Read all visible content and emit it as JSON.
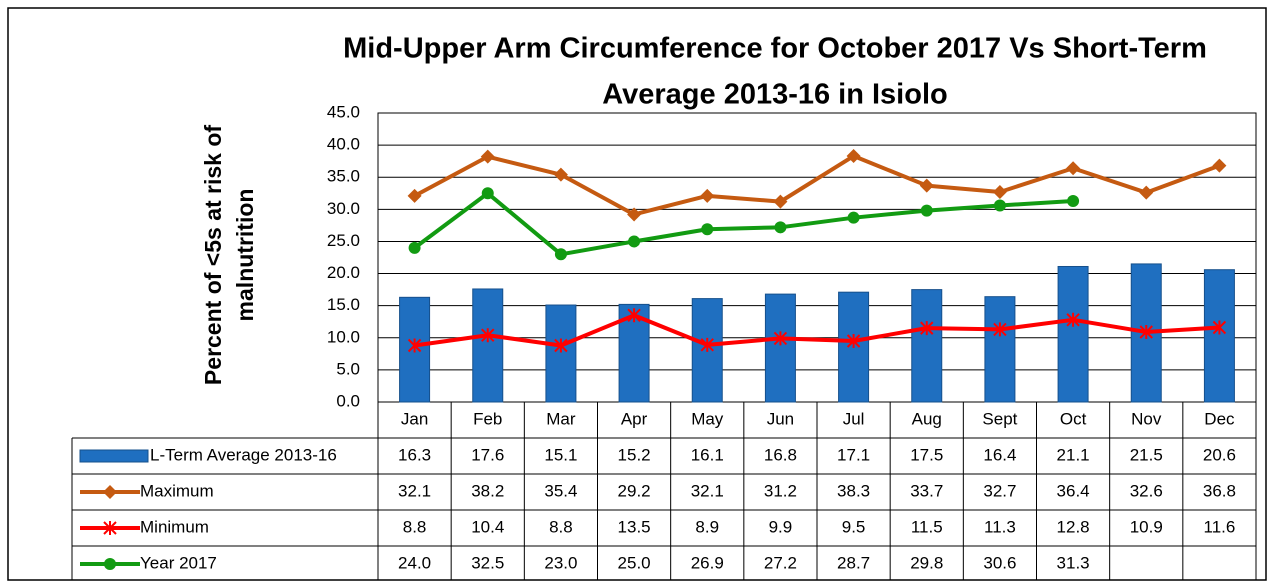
{
  "chart_data": {
    "type": "bar-line-table",
    "title_lines": [
      "Mid-Upper Arm Circumference for October 2017 Vs Short-Term",
      "Average 2013-16  in Isiolo"
    ],
    "ylabel_lines": [
      "Percent of <5s at risk of",
      "malnutrition"
    ],
    "categories": [
      "Jan",
      "Feb",
      "Mar",
      "Apr",
      "May",
      "Jun",
      "Jul",
      "Aug",
      "Sept",
      "Oct",
      "Nov",
      "Dec"
    ],
    "ylim": [
      0,
      45
    ],
    "yticks": [
      {
        "value": 0,
        "label": "0.0"
      },
      {
        "value": 5,
        "label": "5.0"
      },
      {
        "value": 10,
        "label": "10.0"
      },
      {
        "value": 15,
        "label": "15.0"
      },
      {
        "value": 20,
        "label": "20.0"
      },
      {
        "value": 25,
        "label": "25.0"
      },
      {
        "value": 30,
        "label": "30.0"
      },
      {
        "value": 35,
        "label": "35.0"
      },
      {
        "value": 40,
        "label": "40.0"
      },
      {
        "value": 45,
        "label": "45.0"
      }
    ],
    "grid": true,
    "series": [
      {
        "name": "L-Term Average 2013-16",
        "kind": "bar",
        "color": "#1f6fc0",
        "values": [
          16.3,
          17.6,
          15.1,
          15.2,
          16.1,
          16.8,
          17.1,
          17.5,
          16.4,
          21.1,
          21.5,
          20.6
        ],
        "value_labels": [
          "16.3",
          "17.6",
          "15.1",
          "15.2",
          "16.1",
          "16.8",
          "17.1",
          "17.5",
          "16.4",
          "21.1",
          "21.5",
          "20.6"
        ]
      },
      {
        "name": "Maximum",
        "kind": "line",
        "marker": "diamond",
        "color": "#c55a11",
        "values": [
          32.1,
          38.2,
          35.4,
          29.2,
          32.1,
          31.2,
          38.3,
          33.7,
          32.7,
          36.4,
          32.6,
          36.8
        ],
        "value_labels": [
          "32.1",
          "38.2",
          "35.4",
          "29.2",
          "32.1",
          "31.2",
          "38.3",
          "33.7",
          "32.7",
          "36.4",
          "32.6",
          "36.8"
        ]
      },
      {
        "name": "Minimum",
        "kind": "line",
        "marker": "star",
        "color": "#ff0000",
        "values": [
          8.8,
          10.4,
          8.8,
          13.5,
          8.9,
          9.9,
          9.5,
          11.5,
          11.3,
          12.8,
          10.9,
          11.6
        ],
        "value_labels": [
          "8.8",
          "10.4",
          "8.8",
          "13.5",
          "8.9",
          "9.9",
          "9.5",
          "11.5",
          "11.3",
          "12.8",
          "10.9",
          "11.6"
        ]
      },
      {
        "name": "Year 2017",
        "kind": "line",
        "marker": "circle",
        "color": "#129b12",
        "values": [
          24.0,
          32.5,
          23.0,
          25.0,
          26.9,
          27.2,
          28.7,
          29.8,
          30.6,
          31.3,
          null,
          null
        ],
        "value_labels": [
          "24.0",
          "32.5",
          "23.0",
          "25.0",
          "26.9",
          "27.2",
          "28.7",
          "29.8",
          "30.6",
          "31.3",
          null,
          null
        ]
      }
    ]
  }
}
